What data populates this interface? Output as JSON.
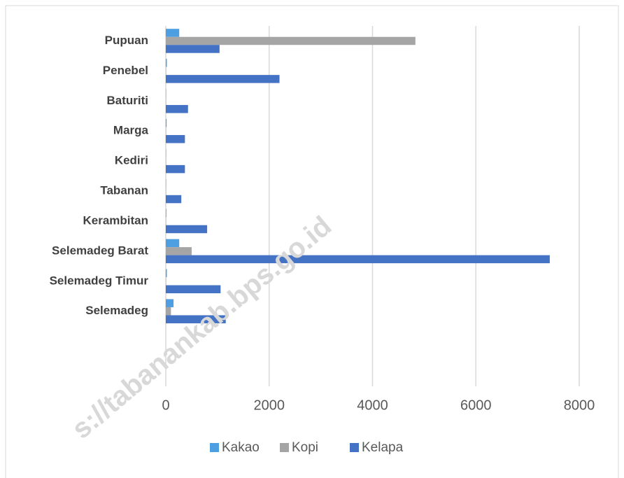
{
  "chart_data": {
    "type": "bar",
    "orientation": "horizontal",
    "categories": [
      "Pupuan",
      "Penebel",
      "Baturiti",
      "Marga",
      "Kediri",
      "Tabanan",
      "Kerambitan",
      "Selemadeg Barat",
      "Selemadeg Timur",
      "Selemadeg",
      null,
      null
    ],
    "series": [
      {
        "name": "Kakao",
        "color": "#4e9ee2",
        "values": [
          260,
          20,
          5,
          15,
          5,
          5,
          10,
          260,
          20,
          150,
          null,
          null
        ]
      },
      {
        "name": "Kopi",
        "color": "#a5a5a5",
        "values": [
          4830,
          5,
          5,
          5,
          5,
          5,
          5,
          500,
          5,
          100,
          null,
          null
        ]
      },
      {
        "name": "Kelapa",
        "color": "#4472c4",
        "values": [
          1040,
          2200,
          430,
          370,
          370,
          300,
          800,
          7430,
          1060,
          1160,
          null,
          null
        ]
      }
    ],
    "xlim": [
      0,
      8000
    ],
    "xticks": [
      0,
      2000,
      4000,
      6000,
      8000
    ],
    "grid": true,
    "legend": "bottom",
    "watermark": "s://tabanankab.bps.go.id"
  }
}
